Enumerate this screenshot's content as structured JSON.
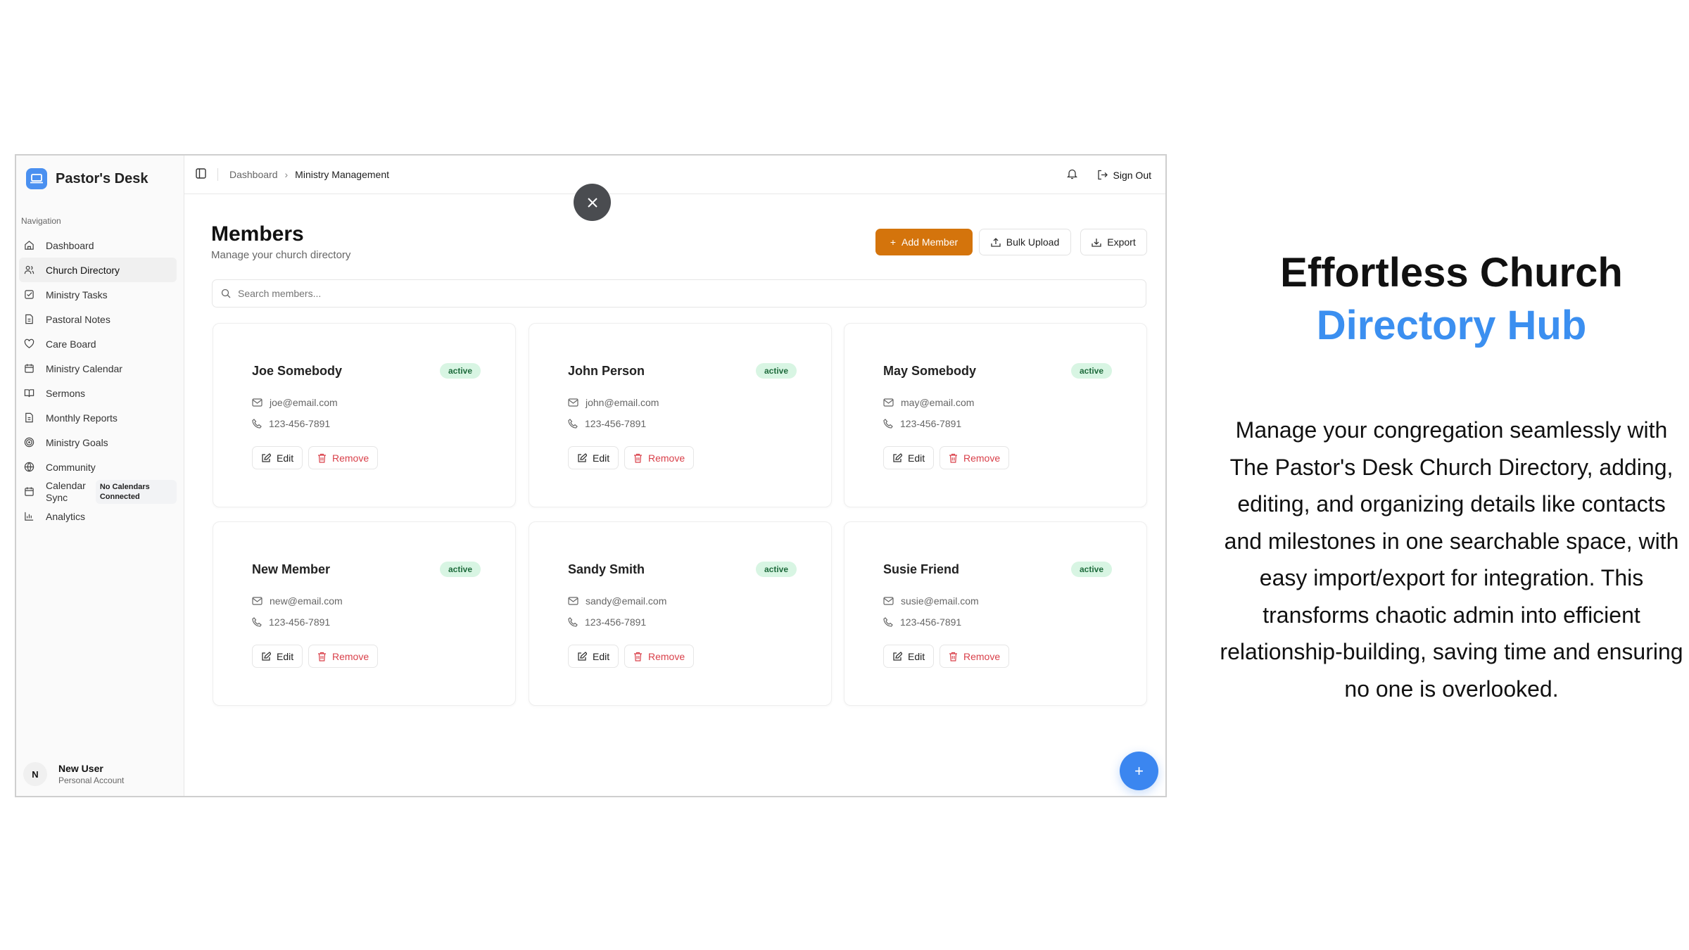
{
  "app": {
    "name": "Pastor's Desk"
  },
  "sidebar": {
    "section_label": "Navigation",
    "items": [
      {
        "label": "Dashboard",
        "icon": "home-icon"
      },
      {
        "label": "Church Directory",
        "icon": "users-icon",
        "active": true
      },
      {
        "label": "Ministry Tasks",
        "icon": "checkbox-icon"
      },
      {
        "label": "Pastoral Notes",
        "icon": "file-text-icon"
      },
      {
        "label": "Care Board",
        "icon": "heart-icon"
      },
      {
        "label": "Ministry Calendar",
        "icon": "calendar-icon"
      },
      {
        "label": "Sermons",
        "icon": "book-open-icon"
      },
      {
        "label": "Monthly Reports",
        "icon": "file-text-icon"
      },
      {
        "label": "Ministry Goals",
        "icon": "target-icon"
      },
      {
        "label": "Community",
        "icon": "globe-icon"
      },
      {
        "label": "Calendar Sync",
        "icon": "calendar-icon",
        "badge": "No Calendars Connected"
      },
      {
        "label": "Analytics",
        "icon": "bar-chart-icon"
      }
    ],
    "user": {
      "initial": "N",
      "name": "New User",
      "account": "Personal Account"
    }
  },
  "header": {
    "breadcrumb": [
      "Dashboard",
      "Ministry Management"
    ],
    "sign_out": "Sign Out"
  },
  "main": {
    "title": "Members",
    "subtitle": "Manage your church directory",
    "add_member": "Add Member",
    "bulk_upload": "Bulk Upload",
    "export": "Export",
    "search_placeholder": "Search members...",
    "edit_label": "Edit",
    "remove_label": "Remove",
    "members": [
      {
        "name": "Joe Somebody",
        "status": "active",
        "email": "joe@email.com",
        "phone": "123-456-7891"
      },
      {
        "name": "John Person",
        "status": "active",
        "email": "john@email.com",
        "phone": "123-456-7891"
      },
      {
        "name": "May Somebody",
        "status": "active",
        "email": "may@email.com",
        "phone": "123-456-7891"
      },
      {
        "name": "New Member",
        "status": "active",
        "email": "new@email.com",
        "phone": "123-456-7891"
      },
      {
        "name": "Sandy Smith",
        "status": "active",
        "email": "sandy@email.com",
        "phone": "123-456-7891"
      },
      {
        "name": "Susie Friend",
        "status": "active",
        "email": "susie@email.com",
        "phone": "123-456-7891"
      }
    ],
    "fab": "+"
  },
  "promo": {
    "title_line1": "Effortless Church",
    "title_line2": "Directory Hub",
    "body": "Manage your congregation seamlessly with The Pastor's Desk Church Directory, adding, editing, and organizing details like contacts and milestones in one searchable space, with easy import/export for integration. This transforms chaotic admin into efficient relationship-building, saving time and ensuring no one is overlooked."
  },
  "colors": {
    "accent": "#d4740c",
    "brand": "#4a90f0",
    "fab": "#3b86f0",
    "highlight": "#3b8ff0",
    "badge_bg": "#d8f5e3",
    "danger": "#d9404a"
  }
}
